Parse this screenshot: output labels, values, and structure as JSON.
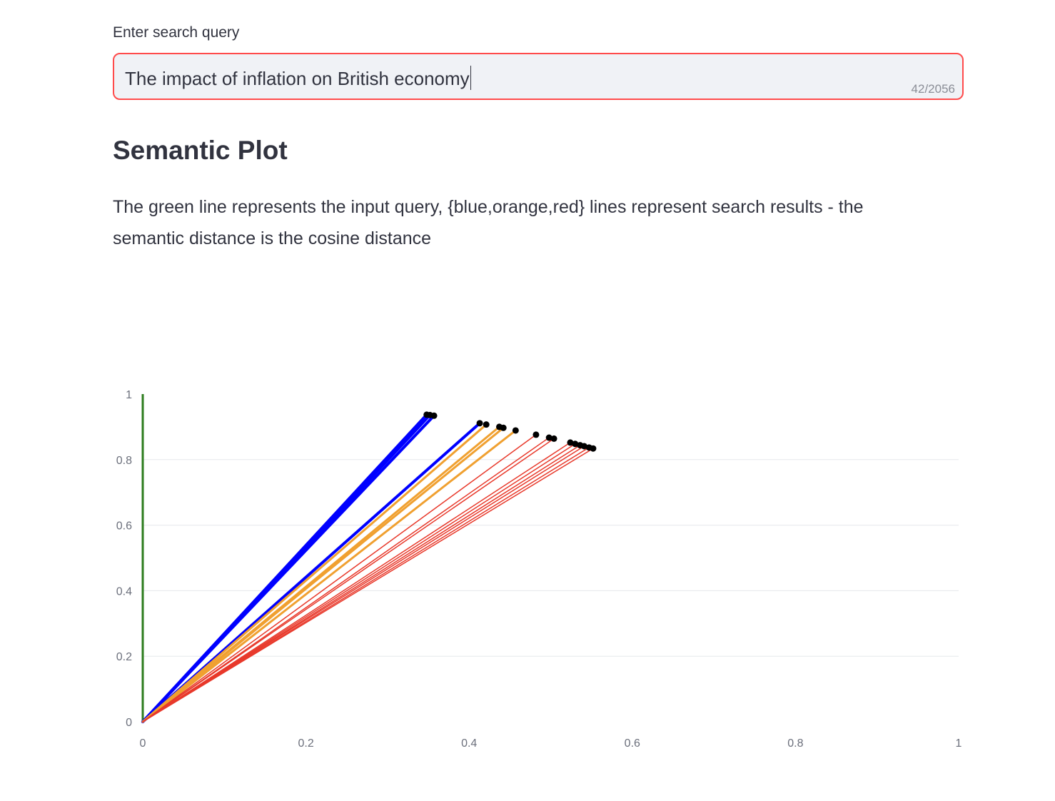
{
  "search": {
    "label": "Enter search query",
    "value": "The impact of inflation on British economy",
    "char_count": "42/2056"
  },
  "section": {
    "title": "Semantic Plot",
    "description": "The green line represents the input query, {blue,orange,red} lines represent search results - the semantic distance is the cosine distance"
  },
  "chart_data": {
    "type": "line",
    "xlim": [
      0,
      1
    ],
    "ylim": [
      0,
      1
    ],
    "x_ticks": [
      "0",
      "0.2",
      "0.4",
      "0.6",
      "0.8",
      "1"
    ],
    "y_ticks": [
      "0",
      "0.2",
      "0.4",
      "0.6",
      "0.8",
      "1"
    ],
    "grid": "horizontal",
    "query_vector": {
      "color": "#2e7d1f",
      "x": 0,
      "y": 1
    },
    "series": [
      {
        "color": "#0000ff",
        "width": 4,
        "points": [
          [
            0.348,
            0.937
          ],
          [
            0.352,
            0.936
          ],
          [
            0.357,
            0.934
          ],
          [
            0.413,
            0.911
          ]
        ]
      },
      {
        "color": "#f0a030",
        "width": 3,
        "points": [
          [
            0.421,
            0.907
          ],
          [
            0.437,
            0.9
          ],
          [
            0.442,
            0.897
          ],
          [
            0.457,
            0.889
          ]
        ]
      },
      {
        "color": "#e8392b",
        "width": 1.5,
        "points": [
          [
            0.482,
            0.876
          ],
          [
            0.498,
            0.867
          ],
          [
            0.504,
            0.864
          ],
          [
            0.524,
            0.852
          ],
          [
            0.53,
            0.848
          ],
          [
            0.536,
            0.844
          ],
          [
            0.541,
            0.841
          ],
          [
            0.547,
            0.837
          ],
          [
            0.552,
            0.834
          ]
        ]
      }
    ],
    "endpoint_color": "#000000"
  }
}
